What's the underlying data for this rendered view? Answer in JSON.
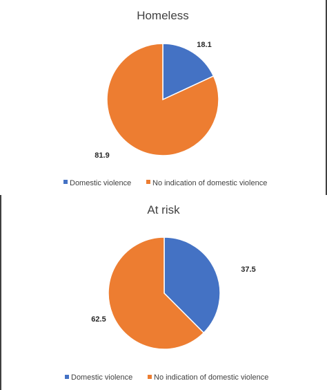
{
  "chart_data": [
    {
      "type": "pie",
      "title": "Homeless",
      "categories": [
        "Domestic violence",
        "No indication of domestic violence"
      ],
      "values": [
        18.1,
        81.9
      ],
      "data_labels": [
        "18.1",
        "81.9"
      ],
      "colors": [
        "#4472C4",
        "#ED7D31"
      ],
      "legend": "bottom"
    },
    {
      "type": "pie",
      "title": "At risk",
      "categories": [
        "Domestic violence",
        "No indication of domestic violence"
      ],
      "values": [
        37.5,
        62.5
      ],
      "data_labels": [
        "37.5",
        "62.5"
      ],
      "colors": [
        "#4472C4",
        "#ED7D31"
      ],
      "legend": "bottom"
    }
  ]
}
